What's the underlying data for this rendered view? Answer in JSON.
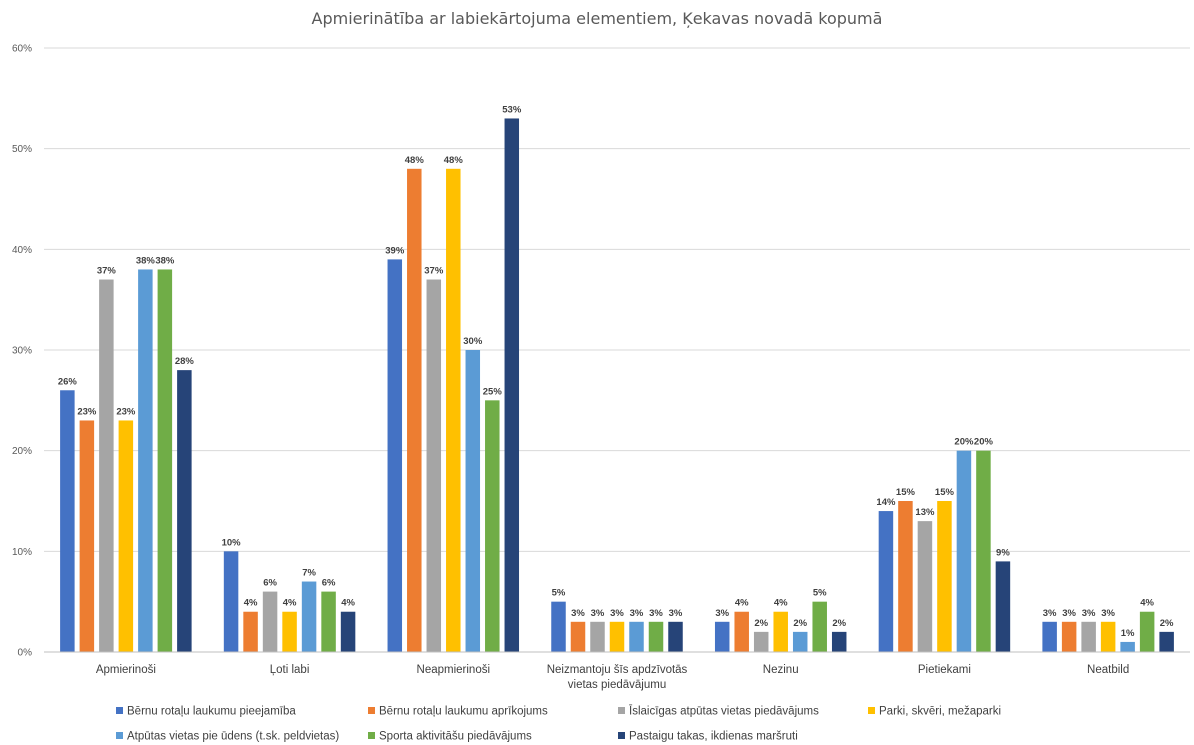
{
  "chart_data": {
    "type": "bar",
    "title": "Apmierinātība ar labiekārtojuma elementiem, Ķekavas novadā kopumā",
    "ylim": [
      0,
      60
    ],
    "yticks": [
      "0%",
      "10%",
      "20%",
      "30%",
      "40%",
      "50%",
      "60%"
    ],
    "ytick_values": [
      0,
      10,
      20,
      30,
      40,
      50,
      60
    ],
    "grid": true,
    "legend_position": "bottom",
    "categories": [
      [
        "Apmierinoši"
      ],
      [
        "Ļoti labi"
      ],
      [
        "Neapmierinoši"
      ],
      [
        "Neizmantoju šīs apdzīvotās",
        "vietas piedāvājumu"
      ],
      [
        "Nezinu"
      ],
      [
        "Pietiekami"
      ],
      [
        "Neatbild"
      ]
    ],
    "series": [
      {
        "name": "Bērnu rotaļu laukumu pieejamība",
        "color": "#4472C4",
        "values": [
          26,
          10,
          39,
          5,
          3,
          14,
          3
        ],
        "labels": [
          "26%",
          "10%",
          "39%",
          "5%",
          "3%",
          "14%",
          "3%"
        ]
      },
      {
        "name": "Bērnu rotaļu laukumu aprīkojums",
        "color": "#ED7D31",
        "values": [
          23,
          4,
          48,
          3,
          4,
          15,
          3
        ],
        "labels": [
          "23%",
          "4%",
          "48%",
          "3%",
          "4%",
          "15%",
          "3%"
        ]
      },
      {
        "name": "Īslaicīgas atpūtas vietas piedāvājums",
        "color": "#A5A5A5",
        "values": [
          37,
          6,
          37,
          3,
          2,
          13,
          3
        ],
        "labels": [
          "37%",
          "6%",
          "37%",
          "3%",
          "2%",
          "13%",
          "3%"
        ]
      },
      {
        "name": "Parki, skvēri, mežaparki",
        "color": "#FFC000",
        "values": [
          23,
          4,
          48,
          3,
          4,
          15,
          3
        ],
        "labels": [
          "23%",
          "4%",
          "48%",
          "3%",
          "4%",
          "15%",
          "3%"
        ]
      },
      {
        "name": "Atpūtas vietas pie ūdens (t.sk. peldvietas)",
        "color": "#5B9BD5",
        "values": [
          38,
          7,
          30,
          3,
          2,
          20,
          1
        ],
        "labels": [
          "38%",
          "7%",
          "30%",
          "3%",
          "2%",
          "20%",
          "1%"
        ]
      },
      {
        "name": "Sporta aktivitāšu piedāvājums",
        "color": "#70AD47",
        "values": [
          38,
          6,
          25,
          3,
          5,
          20,
          4
        ],
        "labels": [
          "38%",
          "6%",
          "25%",
          "3%",
          "5%",
          "20%",
          "4%"
        ]
      },
      {
        "name": "Pastaigu takas, ikdienas maršruti",
        "color": "#264478",
        "values": [
          28,
          4,
          53,
          3,
          2,
          9,
          2
        ],
        "labels": [
          "28%",
          "4%",
          "53%",
          "3%",
          "2%",
          "9%",
          "2%"
        ]
      }
    ]
  }
}
